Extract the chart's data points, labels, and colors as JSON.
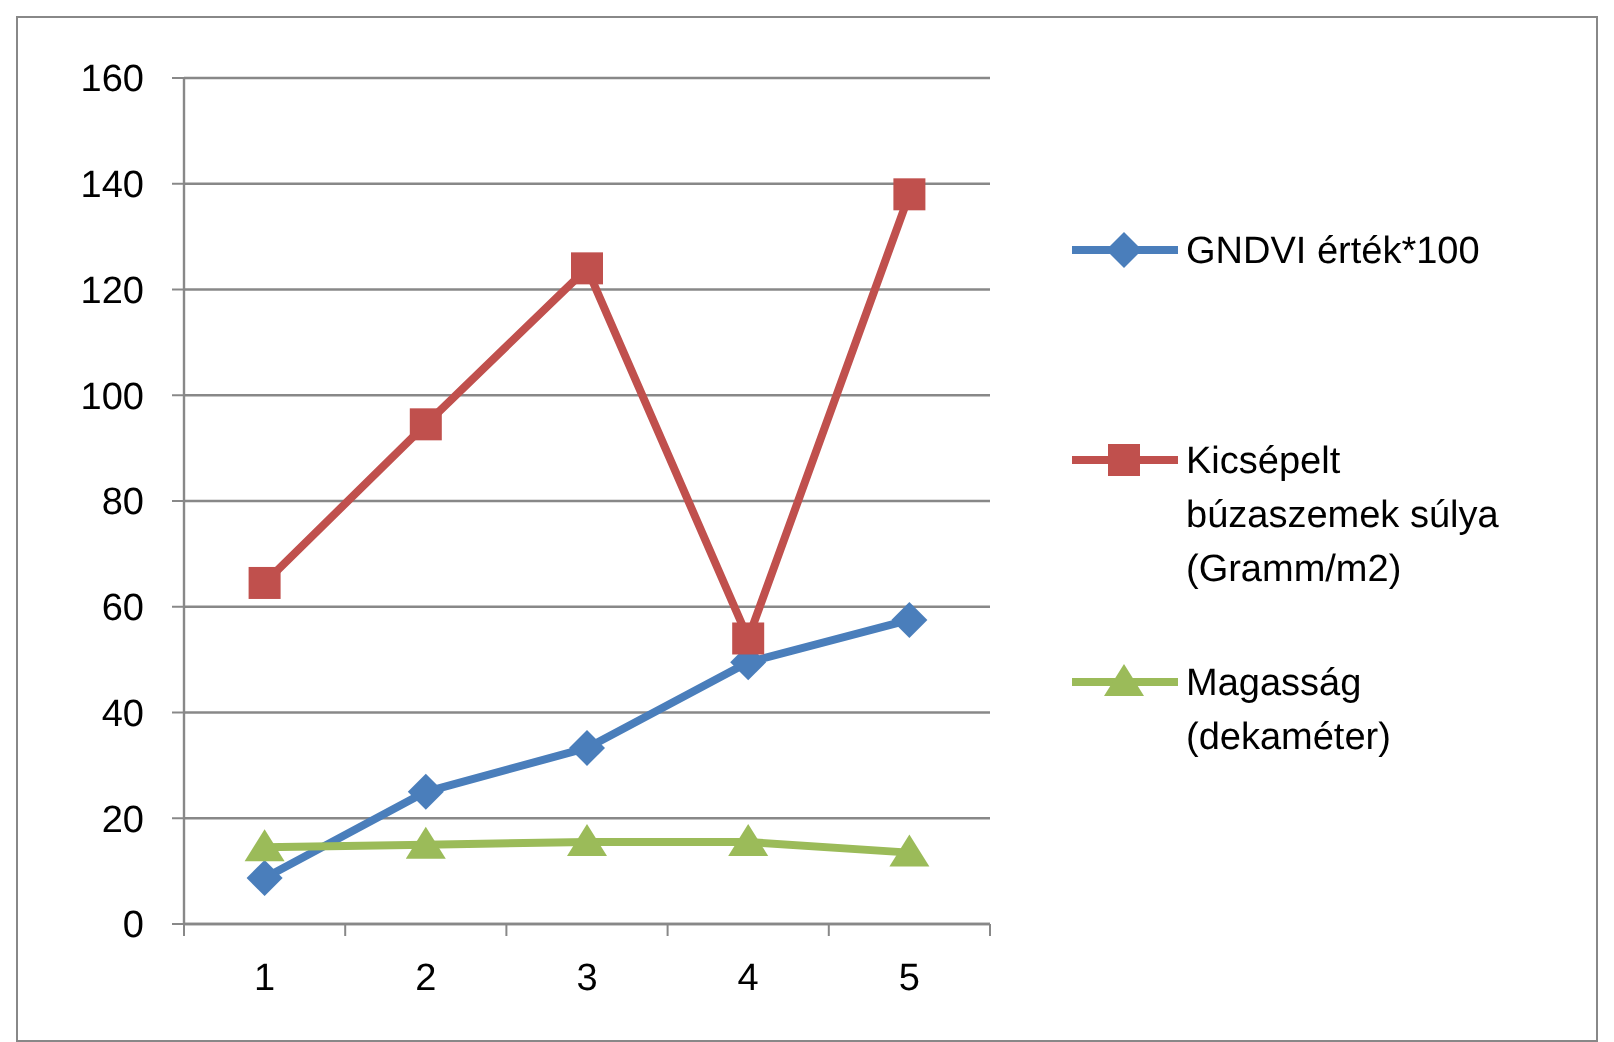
{
  "chart_data": {
    "type": "line",
    "categories": [
      "1",
      "2",
      "3",
      "4",
      "5"
    ],
    "series": [
      {
        "name": "GNDVI érték*100",
        "color": "#4a7ebb",
        "marker": "diamond",
        "values": [
          8.7,
          25,
          33.3,
          49.5,
          57.5
        ]
      },
      {
        "name": "Kicsépelt búzaszemek súlya (Gramm/m2)",
        "color": "#c0504d",
        "marker": "square",
        "values": [
          64.5,
          94.5,
          124,
          54,
          138
        ]
      },
      {
        "name": "Magasság (dekaméter)",
        "color": "#9bbb59",
        "marker": "triangle",
        "values": [
          14.5,
          15,
          15.5,
          15.5,
          13.5
        ]
      }
    ],
    "ylim": [
      0,
      160
    ],
    "yticks": [
      0,
      20,
      40,
      60,
      80,
      100,
      120,
      140,
      160
    ],
    "grid": "y",
    "legend": "right",
    "line_style": "solid"
  }
}
